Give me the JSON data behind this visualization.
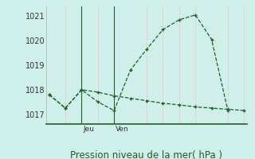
{
  "background_color": "#cff0ea",
  "grid_color_major": "#f0c8c8",
  "grid_color_minor": "#d8eeea",
  "line_color": "#1a6020",
  "axis_color": "#2a5a2a",
  "line1_x": [
    0,
    1,
    2,
    3,
    4,
    5,
    6,
    7,
    8,
    9,
    10,
    11,
    12
  ],
  "line1_y": [
    1017.8,
    1017.25,
    1018.0,
    1017.9,
    1017.75,
    1017.65,
    1017.55,
    1017.45,
    1017.38,
    1017.3,
    1017.25,
    1017.2,
    1017.15
  ],
  "line2_x": [
    0,
    1,
    2,
    3,
    4,
    5,
    6,
    7,
    8,
    9,
    10,
    11
  ],
  "line2_y": [
    1017.8,
    1017.25,
    1018.0,
    1017.5,
    1017.15,
    1018.8,
    1019.65,
    1020.45,
    1020.85,
    1021.05,
    1020.05,
    1017.15
  ],
  "yticks": [
    1017,
    1018,
    1019,
    1020,
    1021
  ],
  "ylim": [
    1016.6,
    1021.4
  ],
  "xlim": [
    -0.2,
    12.2
  ],
  "vline1_x": 2,
  "vline2_x": 4,
  "vline1_label": "Jeu",
  "vline2_label": "Ven",
  "xlabel": "Pression niveau de la mer( hPa )",
  "xlabel_fontsize": 8.5,
  "tick_fontsize": 7,
  "label_fontsize": 6.5
}
